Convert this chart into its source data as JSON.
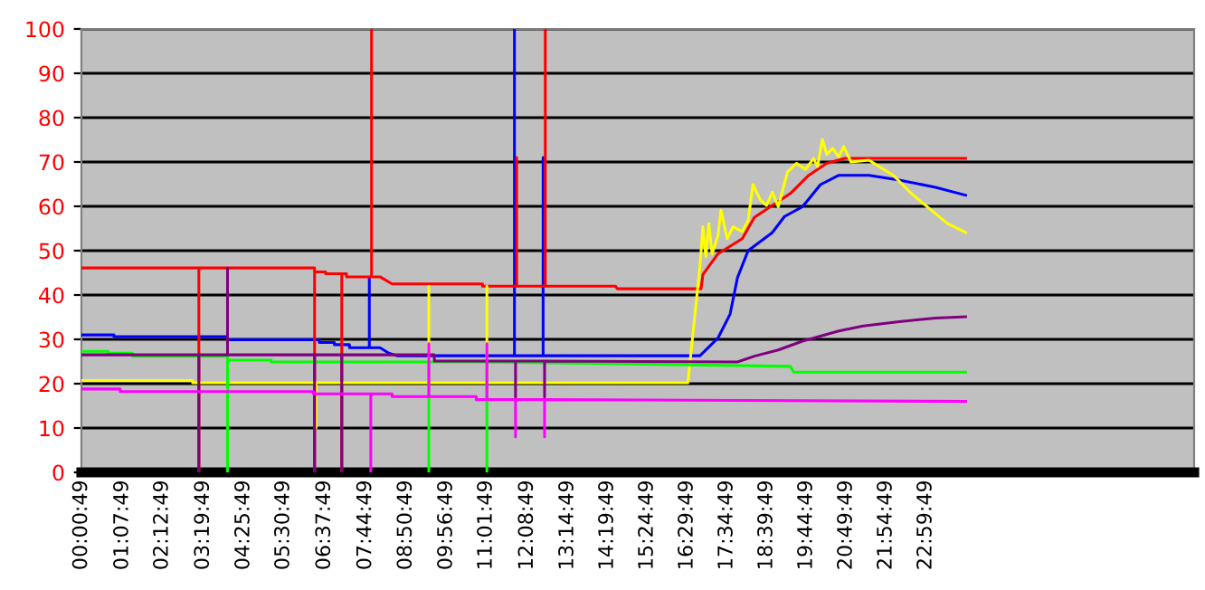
{
  "chart_data": {
    "type": "line",
    "xlim": [
      0.0136,
      30.3
    ],
    "ylim": [
      0,
      100
    ],
    "yticks": [
      0,
      10,
      20,
      30,
      40,
      50,
      60,
      70,
      80,
      90,
      100
    ],
    "xticks": [
      {
        "value": 0.0136,
        "label": "00:00:49"
      },
      {
        "value": 1.1303,
        "label": "01:07:49"
      },
      {
        "value": 2.2136,
        "label": "02:12:49"
      },
      {
        "value": 3.3303,
        "label": "03:19:49"
      },
      {
        "value": 4.4303,
        "label": "04:25:49"
      },
      {
        "value": 5.5136,
        "label": "05:30:49"
      },
      {
        "value": 6.6303,
        "label": "06:37:49"
      },
      {
        "value": 7.7469,
        "label": "07:44:49"
      },
      {
        "value": 8.8469,
        "label": "08:50:49"
      },
      {
        "value": 9.9469,
        "label": "09:56:49"
      },
      {
        "value": 11.0303,
        "label": "11:01:49"
      },
      {
        "value": 12.1469,
        "label": "12:08:49"
      },
      {
        "value": 13.2469,
        "label": "13:14:49"
      },
      {
        "value": 14.3303,
        "label": "14:19:49"
      },
      {
        "value": 15.4136,
        "label": "15:24:49"
      },
      {
        "value": 16.4969,
        "label": "16:29:49"
      },
      {
        "value": 17.5803,
        "label": "17:34:49"
      },
      {
        "value": 18.6636,
        "label": "18:39:49"
      },
      {
        "value": 19.7469,
        "label": "19:44:49"
      },
      {
        "value": 20.8303,
        "label": "20:49:49"
      },
      {
        "value": 21.9136,
        "label": "21:54:49"
      },
      {
        "value": 22.9969,
        "label": "22:59:49"
      }
    ],
    "grid": "y",
    "marker": "none",
    "line_style": "solid",
    "series": [
      {
        "color": "#0000ff",
        "x": [
          0.0136,
          0.9,
          0.9,
          3.99,
          3.99,
          6.49,
          6.49,
          6.9,
          6.9,
          7.31,
          7.31,
          7.85,
          7.85,
          7.85,
          8.14,
          8.38,
          8.6,
          11.8,
          11.8,
          11.8,
          12.58,
          12.58,
          12.58,
          16.85,
          17.34,
          17.67,
          17.87,
          18.16,
          18.82,
          19.15,
          19.64,
          20.13,
          20.63,
          21.45,
          22.27,
          23.26,
          24.08
        ],
        "values": [
          31,
          31,
          30.6,
          30.6,
          29.9,
          29.9,
          29.3,
          29.3,
          28.8,
          28.8,
          28.1,
          28.1,
          44,
          28.1,
          28.1,
          26.9,
          26.3,
          26.3,
          100,
          26.3,
          26.3,
          71,
          26.3,
          26.3,
          30.3,
          35.7,
          43.9,
          50,
          54.1,
          57.7,
          59.9,
          64.9,
          67,
          67,
          65.9,
          64.3,
          62.5
        ]
      },
      {
        "color": "#ff0000",
        "x": [
          0.0136,
          3.21,
          3.21,
          3.21,
          6.33,
          6.36,
          6.36,
          6.36,
          6.66,
          6.66,
          7.1,
          7.1,
          7.1,
          7.23,
          7.23,
          7.91,
          7.91,
          7.91,
          8.14,
          8.47,
          10.93,
          10.93,
          11.86,
          11.86,
          11.86,
          12.64,
          12.64,
          12.64,
          14.55,
          14.6,
          16.88,
          16.93,
          17.34,
          18.0,
          18.33,
          18.82,
          19.31,
          19.81,
          20.3,
          20.79,
          24.08
        ],
        "values": [
          46.1,
          46.1,
          0,
          46.1,
          46.1,
          46.1,
          0,
          45.2,
          45.2,
          44.8,
          44.8,
          0,
          44.8,
          44.8,
          44.1,
          44.1,
          100,
          44.1,
          44.1,
          42.5,
          42.5,
          42,
          42,
          71,
          42,
          42,
          100,
          42,
          42,
          41.4,
          41.4,
          44.6,
          49.3,
          52.7,
          57.5,
          60.2,
          62.9,
          67,
          69.7,
          70.8,
          70.8
        ]
      },
      {
        "color": "#ffff00",
        "x": [
          0.0136,
          3.04,
          3.04,
          6.4,
          6.4,
          6.4,
          9.47,
          9.47,
          9.47,
          11.05,
          11.05,
          11.05,
          16.52,
          16.85,
          16.93,
          17.01,
          17.09,
          17.18,
          17.34,
          17.42,
          17.59,
          17.75,
          18.0,
          18.16,
          18.29,
          18.49,
          18.66,
          18.82,
          18.98,
          19.23,
          19.48,
          19.72,
          19.94,
          20.05,
          20.18,
          20.3,
          20.46,
          20.63,
          20.76,
          20.96,
          21.45,
          22.11,
          22.6,
          23.09,
          23.59,
          24.08
        ],
        "values": [
          20.7,
          20.7,
          20.2,
          20.2,
          10,
          20.2,
          20.2,
          42,
          20.2,
          20.2,
          42,
          20.2,
          20.2,
          46.6,
          55.4,
          48.6,
          56.1,
          49.3,
          53.4,
          59.1,
          52.7,
          55.4,
          54.3,
          56.8,
          64.9,
          61.5,
          60.2,
          63.2,
          59.9,
          67.7,
          69.7,
          68.3,
          70.8,
          69,
          75.1,
          71.7,
          73.1,
          71.1,
          73.5,
          70,
          70.4,
          67,
          62.9,
          59.5,
          56.1,
          54.1
        ]
      },
      {
        "color": "#00ff00",
        "x": [
          0.0136,
          0.74,
          0.74,
          1.4,
          1.4,
          3.99,
          3.99,
          3.99,
          5.18,
          5.18,
          9.47,
          9.47,
          9.47,
          11.05,
          11.05,
          11.05,
          19.31,
          19.4,
          24.08
        ],
        "values": [
          27.3,
          27.3,
          26.9,
          26.9,
          26.2,
          26.2,
          0,
          25.3,
          25.3,
          24.9,
          24.9,
          0,
          24.9,
          24.9,
          0,
          24.9,
          23.9,
          22.6,
          22.6
        ]
      },
      {
        "color": "#800080",
        "x": [
          0.0136,
          3.21,
          3.21,
          3.21,
          3.99,
          3.99,
          3.99,
          6.36,
          6.36,
          6.36,
          7.1,
          7.1,
          7.1,
          9.62,
          9.62,
          11.83,
          11.83,
          11.83,
          12.62,
          12.62,
          12.62,
          17.87,
          18.33,
          18.98,
          19.64,
          20.63,
          21.29,
          22.27,
          23.26,
          24.08
        ],
        "values": [
          26.5,
          26.5,
          0,
          26.5,
          26.5,
          46,
          26.5,
          26.5,
          0,
          26.5,
          26.5,
          0,
          26.5,
          26.5,
          25.1,
          25.1,
          17,
          25.1,
          25.1,
          17,
          25.1,
          24.9,
          26.2,
          27.6,
          29.6,
          31.9,
          33,
          34,
          34.8,
          35.1
        ]
      },
      {
        "color": "#ff00ff",
        "x": [
          0.0136,
          1.07,
          1.07,
          6.33,
          6.33,
          7.89,
          7.89,
          7.89,
          8.47,
          8.47,
          9.47,
          9.47,
          9.47,
          10.76,
          10.76,
          11.05,
          11.05,
          11.05,
          11.83,
          11.83,
          11.83,
          12.62,
          12.62,
          12.62,
          24.08
        ],
        "values": [
          18.8,
          18.8,
          18.2,
          18.2,
          17.7,
          17.7,
          0,
          17.7,
          17.7,
          17.1,
          17.1,
          29,
          17.1,
          17.1,
          16.4,
          16.4,
          29,
          16.4,
          16.4,
          8,
          16.4,
          16.4,
          8,
          16.4,
          16.0
        ]
      }
    ]
  }
}
